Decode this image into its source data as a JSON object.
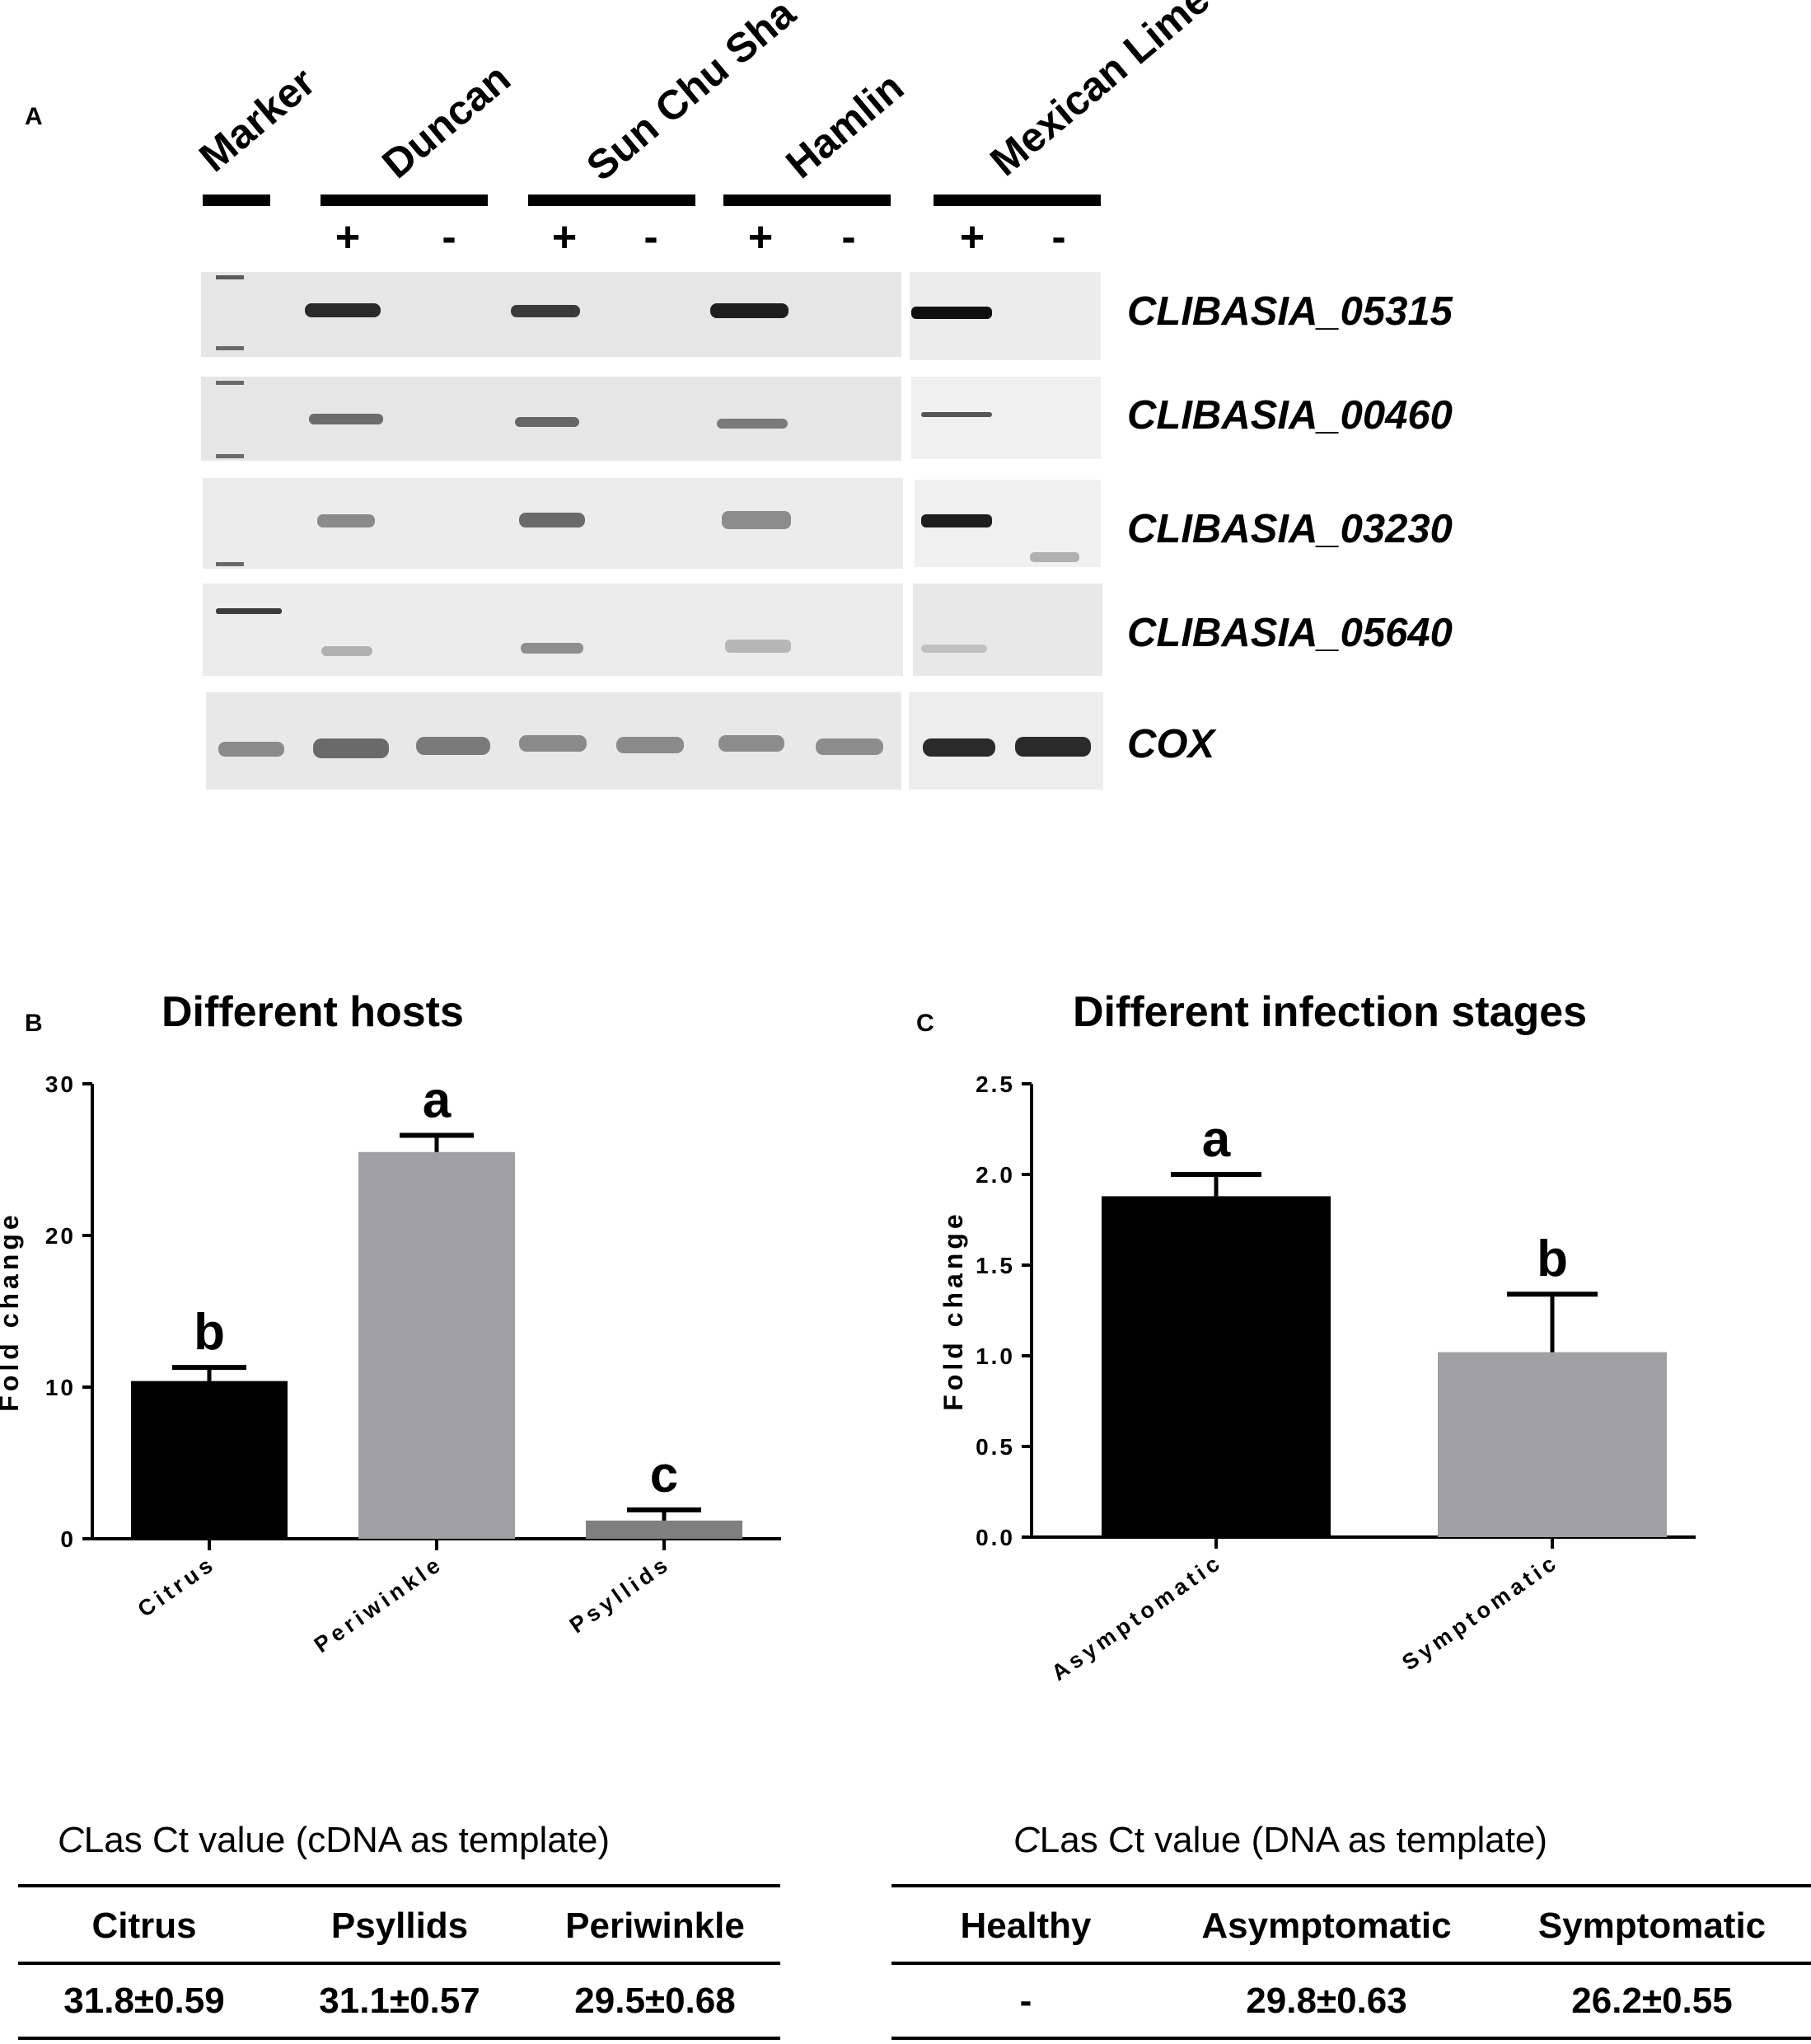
{
  "panel_a": {
    "letter": "A",
    "lane_groups": [
      "Marker",
      "Duncan",
      "Sun Chu Sha",
      "Hamlin",
      "Mexican Lime"
    ],
    "signs": [
      "+",
      "-",
      "+",
      "-",
      "+",
      "-",
      "+",
      "-"
    ],
    "genes": [
      "CLIBASIA_05315",
      "CLIBASIA_00460",
      "CLIBASIA_03230",
      "CLIBASIA_05640",
      "COX"
    ],
    "colors": {
      "gel_bg": "#e4e4e4",
      "band": "#2a2a2a"
    }
  },
  "chart_data": [
    {
      "panel": "B",
      "type": "bar",
      "title": "Different hosts",
      "xlabel": "",
      "ylabel": "Fold change",
      "categories": [
        "Citrus",
        "Periwinkle",
        "Psyllids"
      ],
      "values": [
        10.4,
        25.5,
        1.2
      ],
      "errors": [
        0.9,
        1.1,
        0.7
      ],
      "significance": [
        "b",
        "a",
        "c"
      ],
      "colors": [
        "#000000",
        "#a0a0a4",
        "#808080"
      ],
      "ylim": [
        0,
        30
      ],
      "yticks": [
        "0",
        "10",
        "20",
        "30"
      ]
    },
    {
      "panel": "C",
      "type": "bar",
      "title": "Different infection stages",
      "xlabel": "",
      "ylabel": "Fold change",
      "categories": [
        "Asymptomatic",
        "Symptomatic"
      ],
      "values": [
        1.88,
        1.02
      ],
      "errors": [
        0.12,
        0.32
      ],
      "significance": [
        "a",
        "b"
      ],
      "colors": [
        "#000000",
        "#a0a0a4"
      ],
      "ylim": [
        0,
        2.5
      ],
      "yticks": [
        "0.0",
        "0.5",
        "1.0",
        "1.5",
        "2.0",
        "2.5"
      ]
    },
    {
      "type": "table",
      "title_prefix": "C",
      "title_rest": "Las Ct value (cDNA as template)",
      "headers": [
        "Citrus",
        "Psyllids",
        "Periwinkle"
      ],
      "values": [
        "31.8±0.59",
        "31.1±0.57",
        "29.5±0.68"
      ]
    },
    {
      "type": "table",
      "title_prefix": "C",
      "title_rest": "Las Ct value (DNA as template)",
      "headers": [
        "Healthy",
        "Asymptomatic",
        "Symptomatic"
      ],
      "values": [
        "-",
        "29.8±0.63",
        "26.2±0.55"
      ]
    }
  ]
}
